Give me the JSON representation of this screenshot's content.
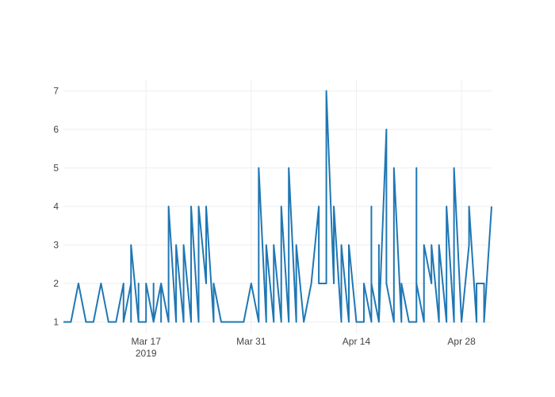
{
  "chart_data": {
    "type": "line",
    "title": "",
    "xlabel": "",
    "ylabel": "",
    "grid": true,
    "legend": "none",
    "ylim": [
      0.7,
      7.3
    ],
    "xlim": [
      "2019-03-06",
      "2019-05-02"
    ],
    "x_ticks": [
      {
        "date": "2019-03-17",
        "label": "Mar 17",
        "sublabel": "2019"
      },
      {
        "date": "2019-03-31",
        "label": "Mar 31",
        "sublabel": ""
      },
      {
        "date": "2019-04-14",
        "label": "Apr 14",
        "sublabel": ""
      },
      {
        "date": "2019-04-28",
        "label": "Apr 28",
        "sublabel": ""
      }
    ],
    "y_ticks": [
      1,
      2,
      3,
      4,
      5,
      6,
      7
    ],
    "series": [
      {
        "color": "#1f77b4",
        "x": [
          "2019-03-06",
          "2019-03-07",
          "2019-03-08",
          "2019-03-08",
          "2019-03-09",
          "2019-03-10",
          "2019-03-11",
          "2019-03-12",
          "2019-03-12",
          "2019-03-13",
          "2019-03-14",
          "2019-03-14",
          "2019-03-15",
          "2019-03-15",
          "2019-03-15",
          "2019-03-16",
          "2019-03-16",
          "2019-03-16",
          "2019-03-17",
          "2019-03-17",
          "2019-03-18",
          "2019-03-18",
          "2019-03-18",
          "2019-03-19",
          "2019-03-19",
          "2019-03-19",
          "2019-03-20",
          "2019-03-20",
          "2019-03-21",
          "2019-03-21",
          "2019-03-22",
          "2019-03-22",
          "2019-03-23",
          "2019-03-23",
          "2019-03-24",
          "2019-03-24",
          "2019-03-25",
          "2019-03-25",
          "2019-03-26",
          "2019-03-26",
          "2019-03-27",
          "2019-03-28",
          "2019-03-29",
          "2019-03-30",
          "2019-03-31",
          "2019-04-01",
          "2019-04-01",
          "2019-04-02",
          "2019-04-02",
          "2019-04-03",
          "2019-04-03",
          "2019-04-04",
          "2019-04-04",
          "2019-04-05",
          "2019-04-05",
          "2019-04-06",
          "2019-04-06",
          "2019-04-07",
          "2019-04-08",
          "2019-04-09",
          "2019-04-09",
          "2019-04-10",
          "2019-04-10",
          "2019-04-10",
          "2019-04-11",
          "2019-04-11",
          "2019-04-12",
          "2019-04-12",
          "2019-04-13",
          "2019-04-13",
          "2019-04-14",
          "2019-04-15",
          "2019-04-15",
          "2019-04-16",
          "2019-04-16",
          "2019-04-16",
          "2019-04-17",
          "2019-04-17",
          "2019-04-17",
          "2019-04-18",
          "2019-04-18",
          "2019-04-19",
          "2019-04-19",
          "2019-04-20",
          "2019-04-20",
          "2019-04-21",
          "2019-04-22",
          "2019-04-22",
          "2019-04-22",
          "2019-04-23",
          "2019-04-23",
          "2019-04-24",
          "2019-04-24",
          "2019-04-25",
          "2019-04-25",
          "2019-04-26",
          "2019-04-26",
          "2019-04-27",
          "2019-04-27",
          "2019-04-28",
          "2019-04-29",
          "2019-04-29",
          "2019-04-30",
          "2019-04-30",
          "2019-05-01",
          "2019-05-01",
          "2019-05-02"
        ],
        "y": [
          1,
          1,
          2,
          2,
          1,
          1,
          2,
          1,
          1,
          1,
          2,
          1,
          2,
          1,
          3,
          1,
          2,
          1,
          1,
          2,
          1,
          2,
          1,
          2,
          1,
          2,
          1,
          4,
          1,
          3,
          1,
          3,
          1,
          4,
          1,
          4,
          2,
          4,
          1,
          2,
          1,
          1,
          1,
          1,
          2,
          1,
          5,
          1,
          3,
          1,
          3,
          1,
          4,
          1,
          5,
          1,
          3,
          1,
          2,
          4,
          2,
          2,
          3,
          7,
          2,
          4,
          1,
          3,
          1,
          3,
          1,
          1,
          2,
          1,
          4,
          2,
          1,
          3,
          1,
          6,
          2,
          1,
          5,
          1,
          2,
          1,
          1,
          5,
          2,
          1,
          3,
          2,
          3,
          1,
          3,
          1,
          4,
          1,
          5,
          1,
          3,
          4,
          1,
          2,
          2,
          1,
          4
        ]
      }
    ]
  }
}
